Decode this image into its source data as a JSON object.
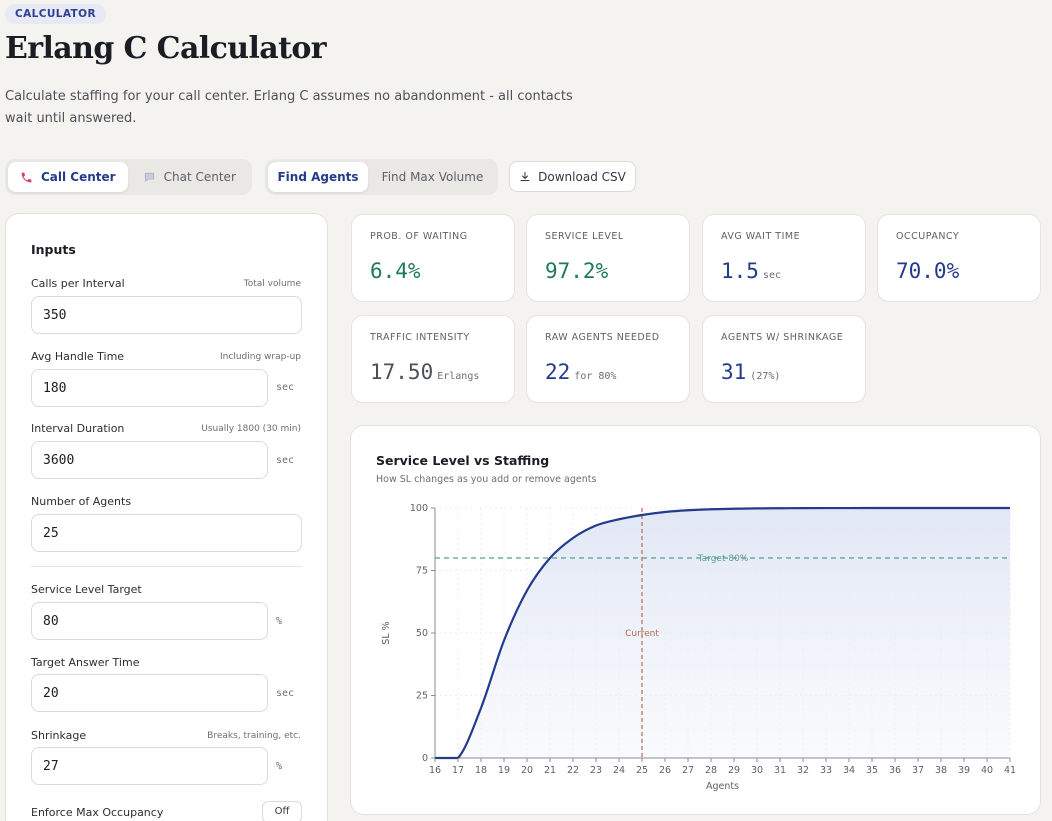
{
  "header": {
    "badge": "CALCULATOR",
    "title": "Erlang C Calculator",
    "subtitle": "Calculate staffing for your call center. Erlang C assumes no abandonment - all contacts wait until answered."
  },
  "channel_tabs": [
    {
      "label": "Call Center",
      "icon": "phone-icon",
      "active": true
    },
    {
      "label": "Chat Center",
      "icon": "chat-bubble-icon",
      "active": false
    }
  ],
  "mode_tabs": [
    {
      "label": "Find Agents",
      "active": true
    },
    {
      "label": "Find Max Volume",
      "active": false
    }
  ],
  "download": {
    "label": "Download CSV",
    "icon": "download-icon"
  },
  "inputs": {
    "title": "Inputs",
    "calls": {
      "label": "Calls per Interval",
      "hint": "Total volume",
      "value": "350"
    },
    "aht": {
      "label": "Avg Handle Time",
      "hint": "Including wrap-up",
      "value": "180",
      "unit": "sec"
    },
    "interval": {
      "label": "Interval Duration",
      "hint": "Usually 1800 (30 min)",
      "value": "3600",
      "unit": "sec"
    },
    "agents": {
      "label": "Number of Agents",
      "value": "25"
    },
    "sl_target": {
      "label": "Service Level Target",
      "value": "80",
      "unit": "%"
    },
    "answer_time": {
      "label": "Target Answer Time",
      "value": "20",
      "unit": "sec"
    },
    "shrinkage": {
      "label": "Shrinkage",
      "hint": "Breaks, training, etc.",
      "value": "27",
      "unit": "%"
    },
    "max_occ": {
      "label": "Enforce Max Occupancy",
      "toggle": "Off"
    }
  },
  "metrics": [
    {
      "key": "PROB. OF WAITING",
      "value": "6.4%",
      "unit": "",
      "color": "#1f7a5a"
    },
    {
      "key": "SERVICE LEVEL",
      "value": "97.2%",
      "unit": "",
      "color": "#1f7a5a"
    },
    {
      "key": "AVG WAIT TIME",
      "value": "1.5",
      "unit": "sec",
      "color": "#243b8c"
    },
    {
      "key": "OCCUPANCY",
      "value": "70.0%",
      "unit": "",
      "color": "#243b8c"
    },
    {
      "key": "TRAFFIC INTENSITY",
      "value": "17.50",
      "unit": "Erlangs",
      "color": "#4d5058"
    },
    {
      "key": "RAW AGENTS NEEDED",
      "value": "22",
      "unit": "for 80%",
      "color": "#243b8c"
    },
    {
      "key": "AGENTS W/ SHRINKAGE",
      "value": "31",
      "unit": "(27%)",
      "color": "#243b8c"
    }
  ],
  "chart": {
    "title": "Service Level vs Staffing",
    "subtitle": "How SL changes as you add or remove agents",
    "colors": {
      "line": "#243b8c",
      "target": "#5b9e8c",
      "current": "#b86a4e"
    }
  },
  "chart_data": {
    "type": "area",
    "title": "Service Level vs Staffing",
    "xlabel": "Agents",
    "ylabel": "SL %",
    "x": [
      16,
      17,
      18,
      19,
      20,
      21,
      22,
      23,
      24,
      25,
      26,
      27,
      28,
      29,
      30,
      31,
      32,
      33,
      34,
      35,
      36,
      37,
      38,
      39,
      40,
      41
    ],
    "series": [
      {
        "values": [
          0,
          0,
          20,
          47,
          67,
          80,
          88,
          93,
          95.5,
          97.2,
          98.4,
          99.1,
          99.5,
          99.7,
          99.85,
          99.9,
          99.95,
          99.97,
          99.98,
          99.99,
          100,
          100,
          100,
          100,
          100,
          100
        ]
      }
    ],
    "xlim": [
      16,
      41
    ],
    "ylim": [
      0,
      100
    ],
    "yticks": [
      0,
      25,
      50,
      75,
      100
    ],
    "target": {
      "value": 80,
      "label": "Target 80%"
    },
    "current": {
      "value": 25,
      "label": "Current"
    },
    "grid": true
  }
}
